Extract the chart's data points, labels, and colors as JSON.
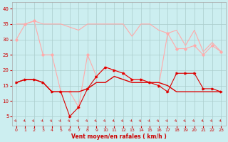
{
  "x": [
    0,
    1,
    2,
    3,
    4,
    5,
    6,
    7,
    8,
    9,
    10,
    11,
    12,
    13,
    14,
    15,
    16,
    17,
    18,
    19,
    20,
    21,
    22,
    23
  ],
  "line1": [
    35,
    35,
    36,
    35,
    35,
    35,
    34,
    33,
    35,
    35,
    35,
    35,
    35,
    31,
    35,
    35,
    33,
    32,
    33,
    28,
    33,
    26,
    29,
    26
  ],
  "line2": [
    30,
    35,
    36,
    25,
    25,
    13,
    13,
    8,
    25,
    18,
    21,
    20,
    19,
    17,
    17,
    16,
    15,
    32,
    27,
    27,
    28,
    25,
    28,
    26
  ],
  "line3": [
    16,
    17,
    17,
    16,
    13,
    13,
    5,
    8,
    14,
    18,
    21,
    20,
    19,
    17,
    17,
    16,
    15,
    13,
    19,
    19,
    19,
    14,
    14,
    13
  ],
  "line4": [
    16,
    17,
    17,
    16,
    13,
    13,
    13,
    13,
    14,
    16,
    16,
    18,
    17,
    16,
    16,
    16,
    16,
    15,
    13,
    13,
    13,
    13,
    13,
    13
  ],
  "bg_color": "#cceef0",
  "grid_color": "#aacccc",
  "line1_color": "#ffaaaa",
  "line2_color": "#ffaaaa",
  "line3_color": "#dd0000",
  "line4_color": "#dd0000",
  "xlabel": "Vent moyen/en rafales ( km/h )",
  "ylim": [
    2,
    42
  ],
  "yticks": [
    5,
    10,
    15,
    20,
    25,
    30,
    35,
    40
  ],
  "xticks": [
    0,
    1,
    2,
    3,
    4,
    5,
    6,
    7,
    8,
    9,
    10,
    11,
    12,
    13,
    14,
    15,
    16,
    17,
    18,
    19,
    20,
    21,
    22,
    23
  ],
  "tick_color": "#cc0000",
  "label_color": "#cc0000"
}
